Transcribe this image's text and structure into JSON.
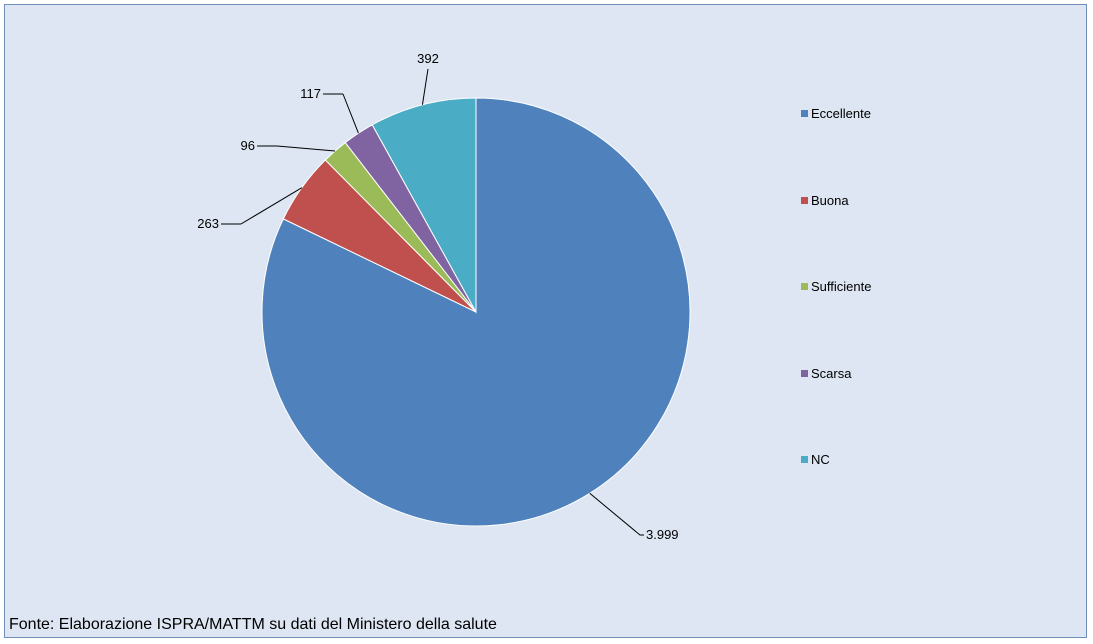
{
  "chart_data": {
    "type": "pie",
    "title": "",
    "categories": [
      "Eccellente",
      "Buona",
      "Sufficiente",
      "Scarsa",
      "NC"
    ],
    "values": [
      3999,
      263,
      96,
      117,
      392
    ],
    "value_labels": [
      "3.999",
      "263",
      "96",
      "117",
      "392"
    ],
    "colors": [
      "#4f81bd",
      "#c0504d",
      "#9bbb59",
      "#8064a2",
      "#4bacc6"
    ],
    "start_angle": "12 o'clock",
    "direction": "clockwise",
    "legend_position": "right",
    "legend": {
      "items": [
        {
          "label": "Eccellente",
          "color": "#4f81bd"
        },
        {
          "label": "Buona",
          "color": "#c0504d"
        },
        {
          "label": "Sufficiente",
          "color": "#9bbb59"
        },
        {
          "label": "Scarsa",
          "color": "#8064a2"
        },
        {
          "label": "NC",
          "color": "#4bacc6"
        }
      ]
    }
  },
  "source_note": "Fonte: Elaborazione ISPRA/MATTM su dati del Ministero della salute"
}
